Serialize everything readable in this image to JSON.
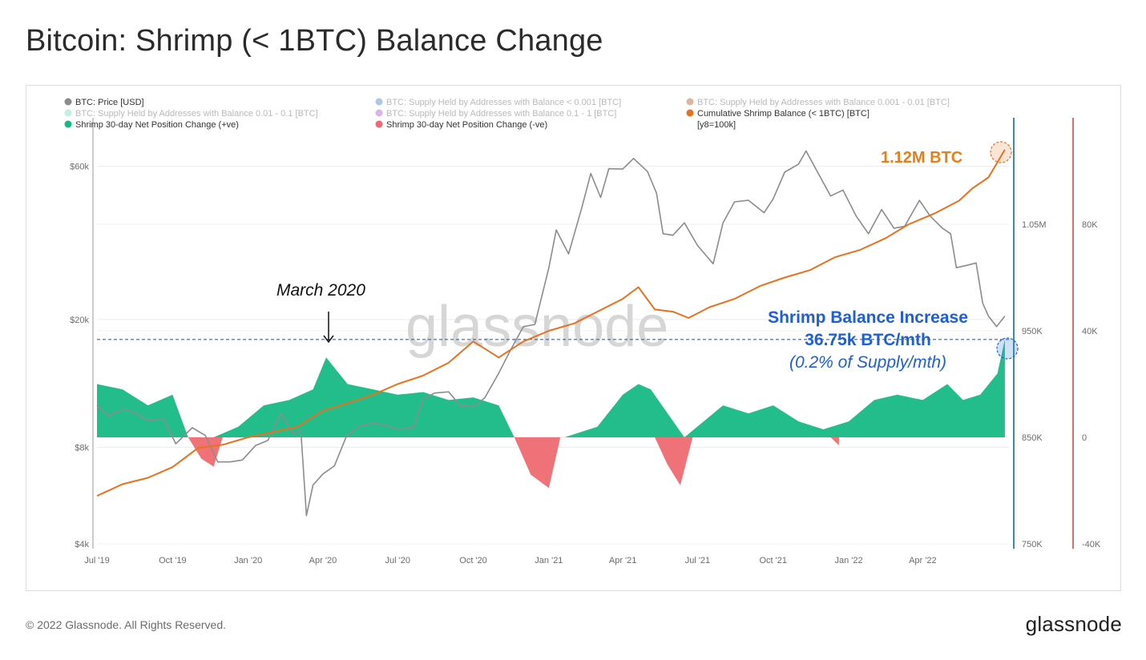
{
  "page": {
    "title": "Bitcoin: Shrimp (< 1BTC) Balance Change",
    "copyright": "© 2022 Glassnode. All Rights Reserved.",
    "brand": "glassnode",
    "watermark": "glassnode"
  },
  "colors": {
    "price": "#8c8c8c",
    "cumulative": "#e8711e",
    "positive": "#16b985",
    "negative": "#ee6a72",
    "blue_axis": "#3b87b8",
    "red_axis": "#c9443f",
    "annot_blue": "#1f5fd1",
    "annot_orange": "#e57f19"
  },
  "legend": [
    {
      "label": "BTC: Price [USD]",
      "color": "#8c8c8c",
      "faded": false
    },
    {
      "label": "BTC: Supply Held by Addresses with Balance < 0.001 [BTC]",
      "color": "#4a84c8",
      "faded": true
    },
    {
      "label": "BTC: Supply Held by Addresses with Balance 0.001 - 0.01 [BTC]",
      "color": "#b35a2c",
      "faded": true
    },
    {
      "label": "BTC: Supply Held by Addresses with Balance 0.01 - 0.1 [BTC]",
      "color": "#7fd9c1",
      "faded": true
    },
    {
      "label": "BTC: Supply Held by Addresses with Balance 0.1 - 1 [BTC]",
      "color": "#a65cc6",
      "faded": true
    },
    {
      "label": "Cumulative Shrimp Balance (< 1BTC) [BTC]",
      "color": "#e8711e",
      "faded": false
    },
    {
      "label": "Shrimp 30-day Net Position Change (+ve)",
      "color": "#16b985",
      "faded": false
    },
    {
      "label": "Shrimp 30-day Net Position Change (-ve)",
      "color": "#ee6a72",
      "faded": false
    }
  ],
  "legend_note": "[y8=100k]",
  "annotations": {
    "march": "March 2020",
    "arrow": "↓",
    "balance": "1.12M BTC",
    "increase_line1": "Shrimp Balance Increase",
    "increase_line2": "36.75k BTC/mth",
    "increase_line3": "(0.2% of Supply/mth)"
  },
  "chart_data": {
    "type": "line",
    "title": "Bitcoin: Shrimp (< 1BTC) Balance Change",
    "x_ticks": [
      "Jul '19",
      "Oct '19",
      "Jan '20",
      "Apr '20",
      "Jul '20",
      "Oct '20",
      "Jan '21",
      "Apr '21",
      "Jul '21",
      "Oct '21",
      "Jan '22",
      "Apr '22"
    ],
    "x_range": [
      "2019-07-01",
      "2022-07-15"
    ],
    "y_price": {
      "scale": "log",
      "ticks": [
        "$4k",
        "$8k",
        "$20k",
        "$60k"
      ],
      "tick_values": [
        4000,
        8000,
        20000,
        60000
      ],
      "range": [
        4000,
        85000
      ]
    },
    "y_balance": {
      "ticks": [
        "750K",
        "850K",
        "950K",
        "1.05M"
      ],
      "tick_values": [
        750000,
        850000,
        950000,
        1050000
      ],
      "range": [
        750000,
        1150000
      ]
    },
    "y_change": {
      "ticks": [
        "-40K",
        "0",
        "40K",
        "80K"
      ],
      "tick_values": [
        -40000,
        0,
        40000,
        80000
      ],
      "range": [
        -40000,
        120000
      ]
    },
    "series": [
      {
        "name": "BTC: Price [USD]",
        "axis": "price",
        "x": [
          "2019-07-01",
          "2019-07-15",
          "2019-08-01",
          "2019-08-15",
          "2019-09-01",
          "2019-09-20",
          "2019-10-05",
          "2019-10-25",
          "2019-11-10",
          "2019-11-25",
          "2019-12-10",
          "2019-12-25",
          "2020-01-10",
          "2020-01-25",
          "2020-02-10",
          "2020-02-25",
          "2020-03-05",
          "2020-03-12",
          "2020-03-20",
          "2020-04-01",
          "2020-04-15",
          "2020-04-30",
          "2020-05-15",
          "2020-06-01",
          "2020-06-15",
          "2020-07-01",
          "2020-07-20",
          "2020-08-01",
          "2020-08-15",
          "2020-09-01",
          "2020-09-15",
          "2020-10-01",
          "2020-10-15",
          "2020-11-01",
          "2020-11-15",
          "2020-12-01",
          "2020-12-15",
          "2021-01-01",
          "2021-01-10",
          "2021-01-25",
          "2021-02-10",
          "2021-02-21",
          "2021-03-05",
          "2021-03-15",
          "2021-04-01",
          "2021-04-14",
          "2021-05-01",
          "2021-05-12",
          "2021-05-20",
          "2021-06-01",
          "2021-06-15",
          "2021-07-01",
          "2021-07-20",
          "2021-08-01",
          "2021-08-15",
          "2021-09-01",
          "2021-09-20",
          "2021-10-01",
          "2021-10-15",
          "2021-11-01",
          "2021-11-10",
          "2021-11-25",
          "2021-12-10",
          "2021-12-25",
          "2022-01-10",
          "2022-01-25",
          "2022-02-10",
          "2022-02-25",
          "2022-03-10",
          "2022-03-28",
          "2022-04-10",
          "2022-04-25",
          "2022-05-05",
          "2022-05-12",
          "2022-05-25",
          "2022-06-05",
          "2022-06-13",
          "2022-06-20",
          "2022-06-30",
          "2022-07-10"
        ],
        "values": [
          10800,
          10000,
          10500,
          10300,
          9700,
          9800,
          8200,
          9200,
          8700,
          7200,
          7200,
          7300,
          8100,
          8400,
          10200,
          8800,
          9100,
          4900,
          6100,
          6600,
          7000,
          8700,
          9300,
          9500,
          9400,
          9100,
          9200,
          11300,
          11800,
          11900,
          10800,
          10700,
          11400,
          13600,
          16000,
          19000,
          19300,
          29000,
          38000,
          32000,
          44500,
          57000,
          48000,
          59000,
          58800,
          63500,
          57800,
          49500,
          37000,
          36600,
          40000,
          34000,
          29800,
          40000,
          46500,
          47000,
          43000,
          47500,
          57500,
          61000,
          67000,
          57000,
          48500,
          50600,
          42000,
          37000,
          44000,
          38500,
          39000,
          47000,
          42000,
          38500,
          37000,
          29000,
          29500,
          30000,
          22500,
          20500,
          19000,
          20500
        ]
      },
      {
        "name": "Cumulative Shrimp Balance (< 1BTC) [BTC]",
        "axis": "balance",
        "x": [
          "2019-07-01",
          "2019-08-01",
          "2019-09-01",
          "2019-10-01",
          "2019-11-01",
          "2019-12-01",
          "2020-01-01",
          "2020-02-01",
          "2020-03-01",
          "2020-04-01",
          "2020-05-01",
          "2020-06-01",
          "2020-07-01",
          "2020-08-01",
          "2020-09-01",
          "2020-10-01",
          "2020-11-01",
          "2020-12-01",
          "2021-01-01",
          "2021-02-01",
          "2021-03-01",
          "2021-04-01",
          "2021-04-20",
          "2021-05-10",
          "2021-06-01",
          "2021-06-20",
          "2021-07-15",
          "2021-08-15",
          "2021-09-15",
          "2021-10-15",
          "2021-11-15",
          "2021-12-15",
          "2022-01-15",
          "2022-02-15",
          "2022-03-15",
          "2022-04-15",
          "2022-05-15",
          "2022-06-01",
          "2022-06-20",
          "2022-07-10"
        ],
        "values": [
          795000,
          806000,
          812000,
          822000,
          840000,
          843000,
          850000,
          855000,
          860000,
          875000,
          882000,
          890000,
          900000,
          908000,
          920000,
          940000,
          925000,
          940000,
          950000,
          957000,
          968000,
          980000,
          991000,
          970000,
          968000,
          962000,
          972000,
          980000,
          992000,
          1000000,
          1007000,
          1019000,
          1026000,
          1037000,
          1050000,
          1060000,
          1072000,
          1084000,
          1094000,
          1120000
        ]
      },
      {
        "name": "Shrimp 30-day Net Position Change (+ve)",
        "axis": "change",
        "x": [
          "2019-07-01",
          "2019-08-01",
          "2019-09-01",
          "2019-10-01",
          "2019-10-20",
          "2019-11-20",
          "2019-12-20",
          "2020-01-20",
          "2020-02-20",
          "2020-03-20",
          "2020-04-05",
          "2020-05-01",
          "2020-06-01",
          "2020-07-01",
          "2020-08-01",
          "2020-09-01",
          "2020-10-01",
          "2020-11-01",
          "2020-11-20",
          "2021-01-20",
          "2021-03-01",
          "2021-04-01",
          "2021-04-20",
          "2021-05-05",
          "2021-06-15",
          "2021-08-01",
          "2021-09-01",
          "2021-10-01",
          "2021-11-01",
          "2021-12-01",
          "2022-01-01",
          "2022-02-01",
          "2022-03-01",
          "2022-04-01",
          "2022-05-01",
          "2022-05-20",
          "2022-06-10",
          "2022-07-01",
          "2022-07-10"
        ],
        "values": [
          20000,
          18000,
          12000,
          16000,
          0,
          0,
          4000,
          12000,
          14000,
          18000,
          30000,
          20000,
          18000,
          16000,
          17000,
          14000,
          15000,
          12000,
          0,
          0,
          4000,
          16000,
          20000,
          18000,
          0,
          12000,
          9000,
          12000,
          6000,
          3000,
          6000,
          14000,
          16000,
          14000,
          20000,
          14000,
          16000,
          24000,
          36750
        ]
      },
      {
        "name": "Shrimp 30-day Net Position Change (-ve)",
        "axis": "change",
        "x": [
          "2019-10-20",
          "2019-11-05",
          "2019-11-20",
          "2019-12-01",
          "2020-11-20",
          "2020-12-10",
          "2021-01-01",
          "2021-01-15",
          "2021-05-10",
          "2021-05-25",
          "2021-06-10",
          "2021-06-25",
          "2021-12-10",
          "2021-12-20"
        ],
        "values": [
          0,
          -8000,
          -11000,
          0,
          0,
          -14000,
          -19000,
          0,
          0,
          -10000,
          -18000,
          0,
          0,
          -3000
        ]
      }
    ],
    "reference_line": {
      "label": "36.75k BTC/mth",
      "value": 36750,
      "axis": "change",
      "style": "dashed"
    },
    "grid": true,
    "legend_position": "top"
  }
}
